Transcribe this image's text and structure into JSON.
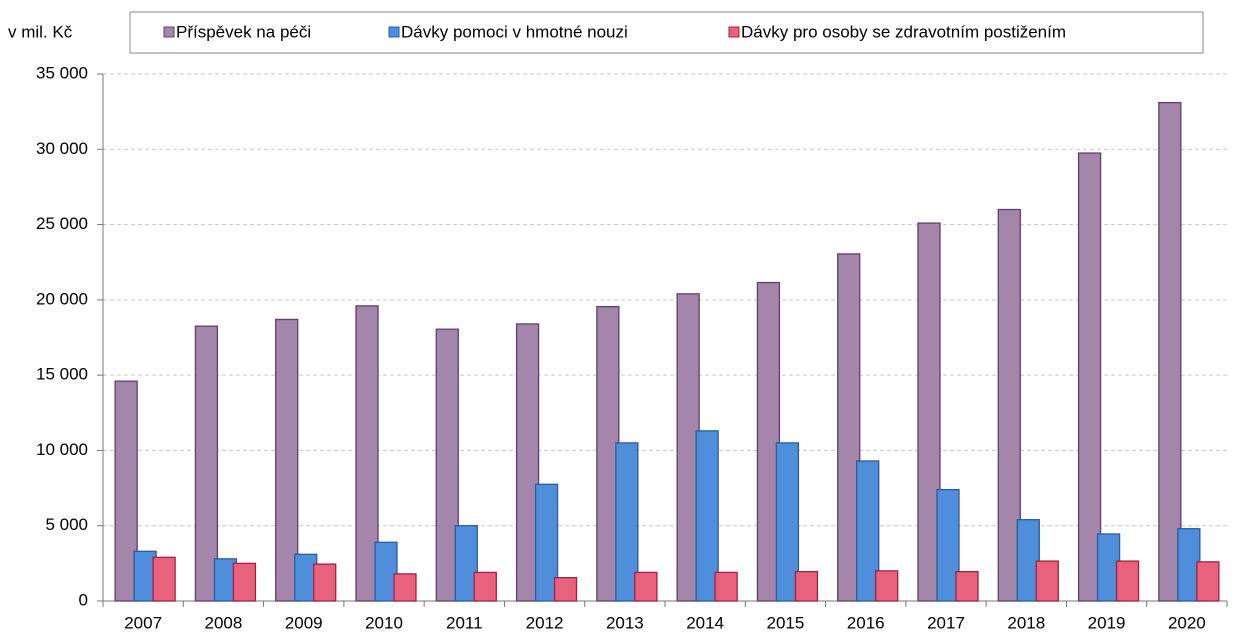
{
  "chart_data": {
    "type": "bar",
    "y_label": "v mil. Kč",
    "categories": [
      "2007",
      "2008",
      "2009",
      "2010",
      "2011",
      "2012",
      "2013",
      "2014",
      "2015",
      "2016",
      "2017",
      "2018",
      "2019",
      "2020"
    ],
    "series": [
      {
        "name": "Příspěvek na péči",
        "color": "#a386a9",
        "values": [
          14600,
          18250,
          18700,
          19600,
          18050,
          18400,
          19550,
          20400,
          21150,
          23050,
          25100,
          26000,
          29750,
          33100
        ]
      },
      {
        "name": "Dávky pomoci v hmotné nouzi",
        "color": "#4e8edb",
        "values": [
          3300,
          2800,
          3100,
          3900,
          5000,
          7750,
          10500,
          11300,
          10500,
          9300,
          7400,
          5400,
          4450,
          4800
        ]
      },
      {
        "name": "Dávky pro osoby se zdravotním postižením",
        "color": "#e8627e",
        "values": [
          2900,
          2500,
          2450,
          1800,
          1900,
          1550,
          1900,
          1900,
          1950,
          2000,
          1950,
          2650,
          2650,
          2600
        ]
      }
    ],
    "ylim": [
      0,
      35000
    ],
    "yticks": [
      0,
      {
        "value": 5000,
        "label": "5 000"
      },
      {
        "value": 10000,
        "label": "10 000"
      },
      {
        "value": 15000,
        "label": "15 000"
      },
      {
        "value": 20000,
        "label": "20 000"
      },
      {
        "value": 25000,
        "label": "25 000"
      },
      {
        "value": 30000,
        "label": "30 000"
      },
      {
        "value": 35000,
        "label": "35 000"
      }
    ],
    "grid": true,
    "legend": "top"
  }
}
